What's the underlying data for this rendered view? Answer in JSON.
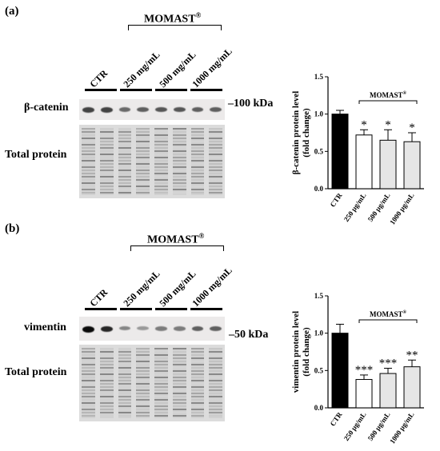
{
  "panels": [
    {
      "label": "(a)",
      "group_label": "MOMAST",
      "group_mark": "®",
      "lanes": [
        "CTR",
        "250 mg/mL",
        "500 mg/mL",
        "1000 mg/mL"
      ],
      "band_label": "β-catenin",
      "total_label": "Total protein",
      "marker": "–100 kDa",
      "band_intensity": [
        0.7,
        0.7,
        0.5,
        0.55,
        0.6,
        0.6,
        0.55,
        0.55
      ]
    },
    {
      "label": "(b)",
      "group_label": "MOMAST",
      "group_mark": "®",
      "lanes": [
        "CTR",
        "250 mg/mL",
        "500 mg/mL",
        "1000 mg/mL"
      ],
      "band_label": "vimentin",
      "total_label": "Total protein",
      "marker": "–50 kDa",
      "band_intensity": [
        1.0,
        0.85,
        0.35,
        0.25,
        0.4,
        0.4,
        0.55,
        0.55
      ]
    }
  ],
  "chart_data": [
    {
      "type": "bar",
      "categories": [
        "CTR",
        "250 μg/mL",
        "500 μg/mL",
        "1000 μg/mL"
      ],
      "values": [
        1.0,
        0.72,
        0.65,
        0.63
      ],
      "errors": [
        0.05,
        0.07,
        0.14,
        0.12
      ],
      "significance": [
        "",
        "*",
        "*",
        "*"
      ],
      "ylabel": "β-catenin protein level (fold change)",
      "ylim": [
        0,
        1.5
      ],
      "yticks": [
        "0.0",
        "0.5",
        "1.0",
        "1.5"
      ],
      "group_label": "MOMAST",
      "group_mark": "®",
      "bar_colors": [
        "#000000",
        "#ffffff",
        "#e6e6e6",
        "#e6e6e6"
      ]
    },
    {
      "type": "bar",
      "categories": [
        "CTR",
        "250 μg/mL",
        "500 μg/mL",
        "1000 μg/mL"
      ],
      "values": [
        1.0,
        0.38,
        0.46,
        0.55
      ],
      "errors": [
        0.12,
        0.06,
        0.07,
        0.09
      ],
      "significance": [
        "",
        "***",
        "***",
        "**"
      ],
      "ylabel": "vimentin protein level (fold change)",
      "ylim": [
        0,
        1.5
      ],
      "yticks": [
        "0.0",
        "0.5",
        "1.0",
        "1.5"
      ],
      "group_label": "MOMAST",
      "group_mark": "®",
      "bar_colors": [
        "#000000",
        "#ffffff",
        "#e6e6e6",
        "#e6e6e6"
      ]
    }
  ]
}
